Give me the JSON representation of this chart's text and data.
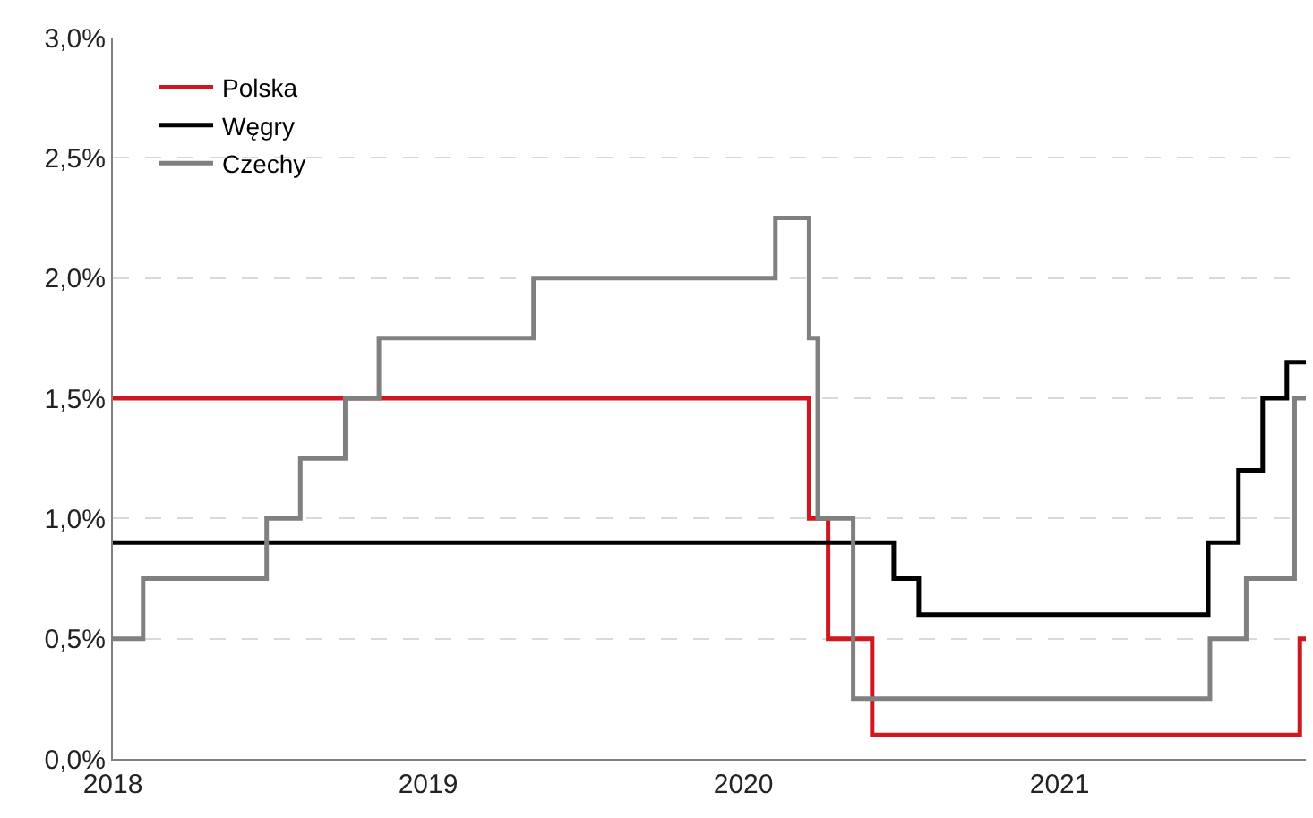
{
  "chart_data": {
    "type": "step",
    "series": [
      {
        "name": "Polska",
        "color": "#d0161e",
        "x": [
          "2018-01-01",
          "2020-03-17",
          "2020-04-08",
          "2020-05-29",
          "2021-10-06",
          "2021-10-13"
        ],
        "values": [
          1.5,
          1.0,
          0.5,
          0.1,
          0.5,
          0.5
        ]
      },
      {
        "name": "Węgry",
        "color": "#000000",
        "x": [
          "2018-01-01",
          "2020-06-23",
          "2020-07-22",
          "2021-06-22",
          "2021-07-27",
          "2021-08-24",
          "2021-09-21",
          "2021-10-13"
        ],
        "values": [
          0.9,
          0.75,
          0.6,
          0.9,
          1.2,
          1.5,
          1.65,
          1.65
        ]
      },
      {
        "name": "Czechy",
        "color": "#808080",
        "x": [
          "2018-01-01",
          "2018-02-05",
          "2018-06-28",
          "2018-08-06",
          "2018-09-27",
          "2018-11-05",
          "2019-05-03",
          "2020-02-07",
          "2020-03-17",
          "2020-03-27",
          "2020-05-07",
          "2021-06-24",
          "2021-08-05",
          "2021-09-30",
          "2021-10-13"
        ],
        "values": [
          0.5,
          0.75,
          1.0,
          1.25,
          1.5,
          1.75,
          2.0,
          2.25,
          1.75,
          1.0,
          0.25,
          0.5,
          0.75,
          1.5,
          1.5
        ]
      }
    ],
    "xlim": [
      "2018-01-01",
      "2021-10-13"
    ],
    "xticks": [
      {
        "value": "2018-01-01",
        "label": "2018"
      },
      {
        "value": "2019-01-01",
        "label": "2019"
      },
      {
        "value": "2020-01-01",
        "label": "2020"
      },
      {
        "value": "2021-01-01",
        "label": "2021"
      }
    ],
    "ylim": [
      0,
      3
    ],
    "yticks": [
      {
        "value": 0,
        "label": "0,0%"
      },
      {
        "value": 0.5,
        "label": "0,5%"
      },
      {
        "value": 1,
        "label": "1,0%"
      },
      {
        "value": 1.5,
        "label": "1,5%"
      },
      {
        "value": 2,
        "label": "2,0%"
      },
      {
        "value": 2.5,
        "label": "2,5%"
      },
      {
        "value": 3,
        "label": "3,0%"
      }
    ],
    "grid": "y",
    "legend": "top",
    "line_style": "solid",
    "marker": "none"
  }
}
